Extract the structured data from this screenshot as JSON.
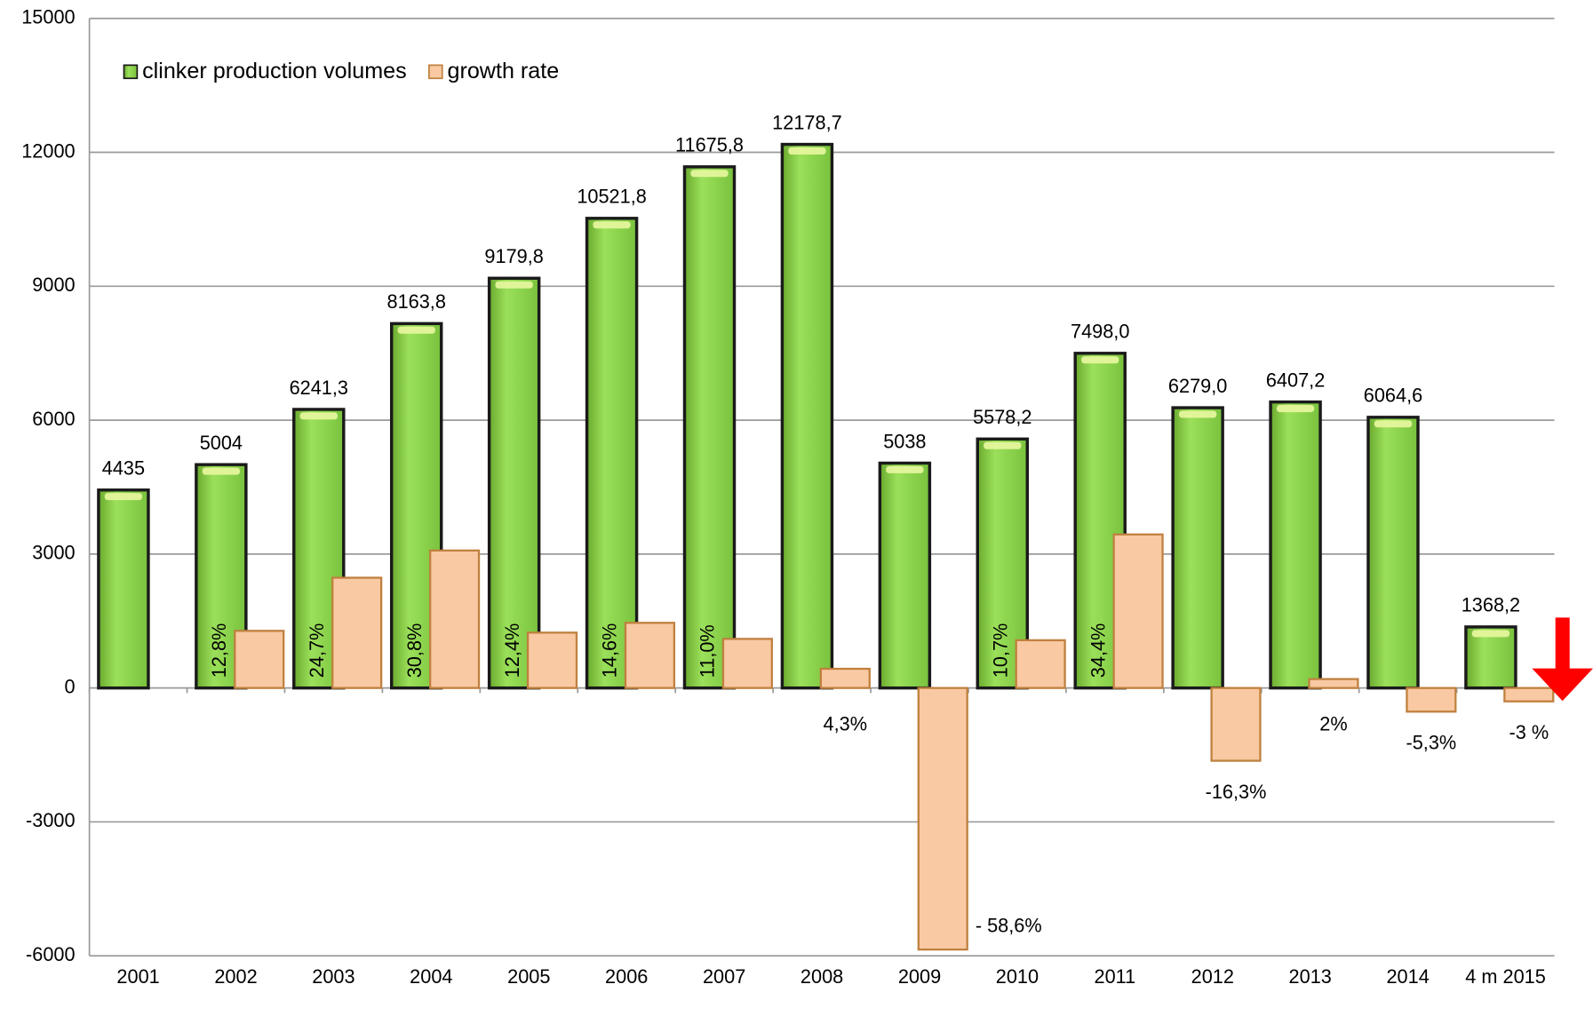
{
  "chart_data": {
    "type": "bar",
    "categories": [
      "2001",
      "2002",
      "2003",
      "2004",
      "2005",
      "2006",
      "2007",
      "2008",
      "2009",
      "2010",
      "2011",
      "2012",
      "2013",
      "2014",
      "4 m 2015"
    ],
    "series": [
      {
        "name": "clinker production volumes",
        "color": "#8fd14f",
        "values": [
          4435,
          5004,
          6241.3,
          8163.8,
          9179.8,
          10521.8,
          11675.8,
          12178.7,
          5038,
          5578.2,
          7498.0,
          6279.0,
          6407.2,
          6064.6,
          1368.2
        ],
        "value_labels": [
          "4435",
          "5004",
          "6241,3",
          "8163,8",
          "9179,8",
          "10521,8",
          "11675,8",
          "12178,7",
          "5038",
          "5578,2",
          "7498,0",
          "6279,0",
          "6407,2",
          "6064,6",
          "1368,2"
        ]
      },
      {
        "name": "growth rate",
        "color": "#f8c9a2",
        "axis": "y2",
        "values": [
          null,
          12.8,
          24.7,
          30.8,
          12.4,
          14.6,
          11.0,
          4.3,
          -58.6,
          10.7,
          34.4,
          -16.3,
          2,
          -5.3,
          -3
        ],
        "value_labels": [
          null,
          "12,8%",
          "24,7%",
          "30,8%",
          "12,4%",
          "14,6%",
          "11,0%",
          "4,3%",
          "- 58,6%",
          "10,7%",
          "34,4%",
          "-16,3%",
          "2%",
          "-5,3%",
          "-3 %"
        ]
      }
    ],
    "ylim": [
      -6000,
      15000
    ],
    "yticks": [
      -6000,
      -3000,
      0,
      3000,
      6000,
      9000,
      12000,
      15000
    ],
    "y2lim": [
      -60,
      150
    ],
    "grid": true,
    "legend": "top-left"
  }
}
